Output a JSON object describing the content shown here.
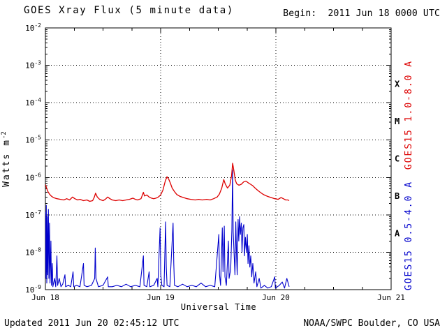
{
  "header": {
    "title": "GOES Xray Flux (5 minute data)",
    "begin_label": "Begin:  2011 Jun 18 0000 UTC"
  },
  "footer": {
    "updated": "Updated 2011 Jun 20 02:45:12 UTC",
    "credit": "NOAA/SWPC Boulder, CO USA"
  },
  "colors": {
    "long_channel": "#dd0000",
    "short_channel": "#0000cc",
    "axes": "#000000",
    "background": "#ffffff"
  },
  "chart_data": {
    "type": "line",
    "title": "GOES Xray Flux (5 minute data)",
    "xlabel": "Universal Time",
    "ylabel": "Watts m^-2",
    "ylabel_base": "Watts m",
    "ylabel_sup": "-2",
    "x_range_days": [
      0,
      3
    ],
    "x_encoding": "days since Jun 18 0000 UTC",
    "y_scale": "log10",
    "y_log_range": [
      -2,
      -9
    ],
    "x_ticks": [
      {
        "day": 0,
        "label": "Jun 18"
      },
      {
        "day": 1,
        "label": "Jun 19"
      },
      {
        "day": 2,
        "label": "Jun 20"
      },
      {
        "day": 3,
        "label": "Jun 21"
      }
    ],
    "y_tick_exps": [
      -2,
      -3,
      -4,
      -5,
      -6,
      -7,
      -8,
      -9
    ],
    "grid": {
      "h_exps": [
        -3,
        -4,
        -5,
        -6,
        -7,
        -8
      ],
      "v_days": [
        1,
        2
      ]
    },
    "flare_classes": [
      {
        "label": "X",
        "exp": -3.5
      },
      {
        "label": "M",
        "exp": -4.5
      },
      {
        "label": "C",
        "exp": -5.5
      },
      {
        "label": "B",
        "exp": -6.5
      },
      {
        "label": "A",
        "exp": -7.5
      }
    ],
    "legend_position": "right-rotated",
    "series": [
      {
        "name": "GOES15 1.0-8.0 A",
        "color": "#dd0000",
        "points": [
          [
            0.0,
            6.5e-07
          ],
          [
            0.01,
            5.2e-07
          ],
          [
            0.02,
            4.3e-07
          ],
          [
            0.035,
            3.6e-07
          ],
          [
            0.05,
            3.2e-07
          ],
          [
            0.07,
            2.9e-07
          ],
          [
            0.1,
            2.7e-07
          ],
          [
            0.13,
            2.6e-07
          ],
          [
            0.16,
            2.5e-07
          ],
          [
            0.185,
            2.7e-07
          ],
          [
            0.21,
            2.5e-07
          ],
          [
            0.235,
            3e-07
          ],
          [
            0.255,
            2.7e-07
          ],
          [
            0.28,
            2.5e-07
          ],
          [
            0.3,
            2.6e-07
          ],
          [
            0.33,
            2.4e-07
          ],
          [
            0.36,
            2.5e-07
          ],
          [
            0.385,
            2.3e-07
          ],
          [
            0.41,
            2.4e-07
          ],
          [
            0.425,
            3e-07
          ],
          [
            0.435,
            3.8e-07
          ],
          [
            0.45,
            3e-07
          ],
          [
            0.47,
            2.6e-07
          ],
          [
            0.5,
            2.4e-07
          ],
          [
            0.52,
            2.6e-07
          ],
          [
            0.54,
            3e-07
          ],
          [
            0.56,
            2.7e-07
          ],
          [
            0.58,
            2.5e-07
          ],
          [
            0.61,
            2.4e-07
          ],
          [
            0.64,
            2.5e-07
          ],
          [
            0.67,
            2.4e-07
          ],
          [
            0.7,
            2.5e-07
          ],
          [
            0.73,
            2.6e-07
          ],
          [
            0.76,
            2.8e-07
          ],
          [
            0.78,
            2.6e-07
          ],
          [
            0.8,
            2.5e-07
          ],
          [
            0.83,
            2.7e-07
          ],
          [
            0.85,
            4e-07
          ],
          [
            0.86,
            3.2e-07
          ],
          [
            0.88,
            3.4e-07
          ],
          [
            0.9,
            3e-07
          ],
          [
            0.92,
            2.8e-07
          ],
          [
            0.94,
            2.7e-07
          ],
          [
            0.96,
            2.8e-07
          ],
          [
            0.98,
            3e-07
          ],
          [
            1.0,
            3.4e-07
          ],
          [
            1.02,
            4.6e-07
          ],
          [
            1.04,
            8e-07
          ],
          [
            1.055,
            1.05e-06
          ],
          [
            1.07,
            9e-07
          ],
          [
            1.085,
            7e-07
          ],
          [
            1.1,
            5.2e-07
          ],
          [
            1.12,
            4.2e-07
          ],
          [
            1.14,
            3.5e-07
          ],
          [
            1.17,
            3.1e-07
          ],
          [
            1.2,
            2.9e-07
          ],
          [
            1.23,
            2.7e-07
          ],
          [
            1.26,
            2.6e-07
          ],
          [
            1.3,
            2.5e-07
          ],
          [
            1.33,
            2.6e-07
          ],
          [
            1.36,
            2.5e-07
          ],
          [
            1.4,
            2.6e-07
          ],
          [
            1.43,
            2.5e-07
          ],
          [
            1.46,
            2.7e-07
          ],
          [
            1.49,
            3e-07
          ],
          [
            1.51,
            3.6e-07
          ],
          [
            1.53,
            5.2e-07
          ],
          [
            1.548,
            8.8e-07
          ],
          [
            1.56,
            6.8e-07
          ],
          [
            1.58,
            5.2e-07
          ],
          [
            1.6,
            6.2e-07
          ],
          [
            1.615,
            1.1e-06
          ],
          [
            1.625,
            2.4e-06
          ],
          [
            1.636,
            1.5e-06
          ],
          [
            1.648,
            8.5e-07
          ],
          [
            1.66,
            6.8e-07
          ],
          [
            1.68,
            6.2e-07
          ],
          [
            1.7,
            6.6e-07
          ],
          [
            1.72,
            7.6e-07
          ],
          [
            1.74,
            8e-07
          ],
          [
            1.76,
            7.2e-07
          ],
          [
            1.78,
            6.6e-07
          ],
          [
            1.8,
            6e-07
          ],
          [
            1.82,
            5.2e-07
          ],
          [
            1.84,
            4.6e-07
          ],
          [
            1.86,
            4.1e-07
          ],
          [
            1.88,
            3.7e-07
          ],
          [
            1.9,
            3.4e-07
          ],
          [
            1.93,
            3.1e-07
          ],
          [
            1.96,
            2.9e-07
          ],
          [
            1.99,
            2.7e-07
          ],
          [
            2.02,
            2.6e-07
          ],
          [
            2.045,
            2.9e-07
          ],
          [
            2.065,
            2.7e-07
          ],
          [
            2.085,
            2.5e-07
          ],
          [
            2.105,
            2.5e-07
          ],
          [
            2.115,
            2.4e-07
          ]
        ]
      },
      {
        "name": "GOES15 0.5-4.0 A",
        "color": "#0000cc",
        "points": [
          [
            0.0,
            1.2e-07
          ],
          [
            0.004,
            2e-09
          ],
          [
            0.008,
            1.8e-07
          ],
          [
            0.012,
            1.5e-09
          ],
          [
            0.016,
            9e-08
          ],
          [
            0.02,
            2.5e-09
          ],
          [
            0.026,
            1.4e-07
          ],
          [
            0.03,
            2e-09
          ],
          [
            0.036,
            6e-08
          ],
          [
            0.04,
            1.5e-09
          ],
          [
            0.048,
            2e-08
          ],
          [
            0.052,
            1.3e-09
          ],
          [
            0.06,
            5e-09
          ],
          [
            0.065,
            1.2e-09
          ],
          [
            0.08,
            2e-09
          ],
          [
            0.09,
            1.2e-09
          ],
          [
            0.1,
            8e-09
          ],
          [
            0.106,
            1.3e-09
          ],
          [
            0.12,
            2e-09
          ],
          [
            0.135,
            1.2e-09
          ],
          [
            0.15,
            1.4e-09
          ],
          [
            0.17,
            2.5e-09
          ],
          [
            0.175,
            1.2e-09
          ],
          [
            0.2,
            1.3e-09
          ],
          [
            0.22,
            1.2e-09
          ],
          [
            0.24,
            3e-09
          ],
          [
            0.246,
            1.2e-09
          ],
          [
            0.27,
            1.3e-09
          ],
          [
            0.3,
            1.2e-09
          ],
          [
            0.33,
            5e-09
          ],
          [
            0.336,
            1.3e-09
          ],
          [
            0.36,
            1.2e-09
          ],
          [
            0.4,
            1.3e-09
          ],
          [
            0.428,
            2e-09
          ],
          [
            0.433,
            1.3e-08
          ],
          [
            0.439,
            2e-09
          ],
          [
            0.46,
            1.2e-09
          ],
          [
            0.5,
            1.3e-09
          ],
          [
            0.54,
            2.2e-09
          ],
          [
            0.546,
            1.2e-09
          ],
          [
            0.58,
            1.2e-09
          ],
          [
            0.62,
            1.3e-09
          ],
          [
            0.66,
            1.2e-09
          ],
          [
            0.7,
            1.4e-09
          ],
          [
            0.74,
            1.2e-09
          ],
          [
            0.78,
            1.3e-09
          ],
          [
            0.82,
            1.2e-09
          ],
          [
            0.85,
            8e-09
          ],
          [
            0.856,
            1.3e-09
          ],
          [
            0.88,
            1.2e-09
          ],
          [
            0.9,
            3e-09
          ],
          [
            0.906,
            1.2e-09
          ],
          [
            0.94,
            1.3e-09
          ],
          [
            0.97,
            2e-09
          ],
          [
            0.976,
            1.2e-09
          ],
          [
            0.995,
            4.5e-08
          ],
          [
            1.001,
            2.5e-09
          ],
          [
            1.01,
            1.3e-09
          ],
          [
            1.03,
            1.2e-09
          ],
          [
            1.043,
            6.5e-08
          ],
          [
            1.049,
            4e-09
          ],
          [
            1.056,
            1.3e-09
          ],
          [
            1.08,
            1.2e-09
          ],
          [
            1.108,
            6e-08
          ],
          [
            1.114,
            5e-09
          ],
          [
            1.12,
            1.3e-09
          ],
          [
            1.15,
            1.2e-09
          ],
          [
            1.19,
            1.4e-09
          ],
          [
            1.23,
            1.2e-09
          ],
          [
            1.27,
            1.3e-09
          ],
          [
            1.31,
            1.2e-09
          ],
          [
            1.35,
            1.5e-09
          ],
          [
            1.39,
            1.2e-09
          ],
          [
            1.43,
            1.3e-09
          ],
          [
            1.47,
            1.2e-09
          ],
          [
            1.505,
            3e-08
          ],
          [
            1.511,
            2.5e-09
          ],
          [
            1.52,
            1.3e-09
          ],
          [
            1.535,
            4.5e-08
          ],
          [
            1.541,
            3e-09
          ],
          [
            1.552,
            5e-08
          ],
          [
            1.558,
            2.2e-09
          ],
          [
            1.57,
            1.3e-09
          ],
          [
            1.588,
            2e-08
          ],
          [
            1.594,
            2e-09
          ],
          [
            1.608,
            3.5e-09
          ],
          [
            1.618,
            4e-08
          ],
          [
            1.624,
            1.6e-06
          ],
          [
            1.63,
            3.5e-08
          ],
          [
            1.638,
            8e-09
          ],
          [
            1.645,
            2.5e-09
          ],
          [
            1.652,
            6.5e-08
          ],
          [
            1.658,
            1e-08
          ],
          [
            1.664,
            2.5e-09
          ],
          [
            1.672,
            7.5e-08
          ],
          [
            1.678,
            2e-08
          ],
          [
            1.685,
            9e-08
          ],
          [
            1.692,
            3e-08
          ],
          [
            1.7,
            6e-08
          ],
          [
            1.706,
            1e-08
          ],
          [
            1.714,
            4.5e-08
          ],
          [
            1.722,
            5.5e-08
          ],
          [
            1.728,
            8e-09
          ],
          [
            1.736,
            2.5e-08
          ],
          [
            1.744,
            1e-08
          ],
          [
            1.752,
            3e-08
          ],
          [
            1.758,
            5e-09
          ],
          [
            1.766,
            1.5e-08
          ],
          [
            1.774,
            4e-09
          ],
          [
            1.782,
            8e-09
          ],
          [
            1.79,
            2.2e-09
          ],
          [
            1.8,
            5e-09
          ],
          [
            1.81,
            1.5e-09
          ],
          [
            1.825,
            3e-09
          ],
          [
            1.835,
            1.2e-09
          ],
          [
            1.855,
            2e-09
          ],
          [
            1.87,
            1.1e-09
          ],
          [
            1.9,
            1.3e-09
          ],
          [
            1.93,
            1.1e-09
          ],
          [
            1.96,
            1.2e-09
          ],
          [
            1.99,
            2.2e-09
          ],
          [
            1.996,
            1.1e-09
          ],
          [
            2.03,
            1.3e-09
          ],
          [
            2.055,
            1.6e-09
          ],
          [
            2.075,
            1.1e-09
          ],
          [
            2.095,
            2e-09
          ],
          [
            2.115,
            1.2e-09
          ]
        ]
      }
    ]
  }
}
